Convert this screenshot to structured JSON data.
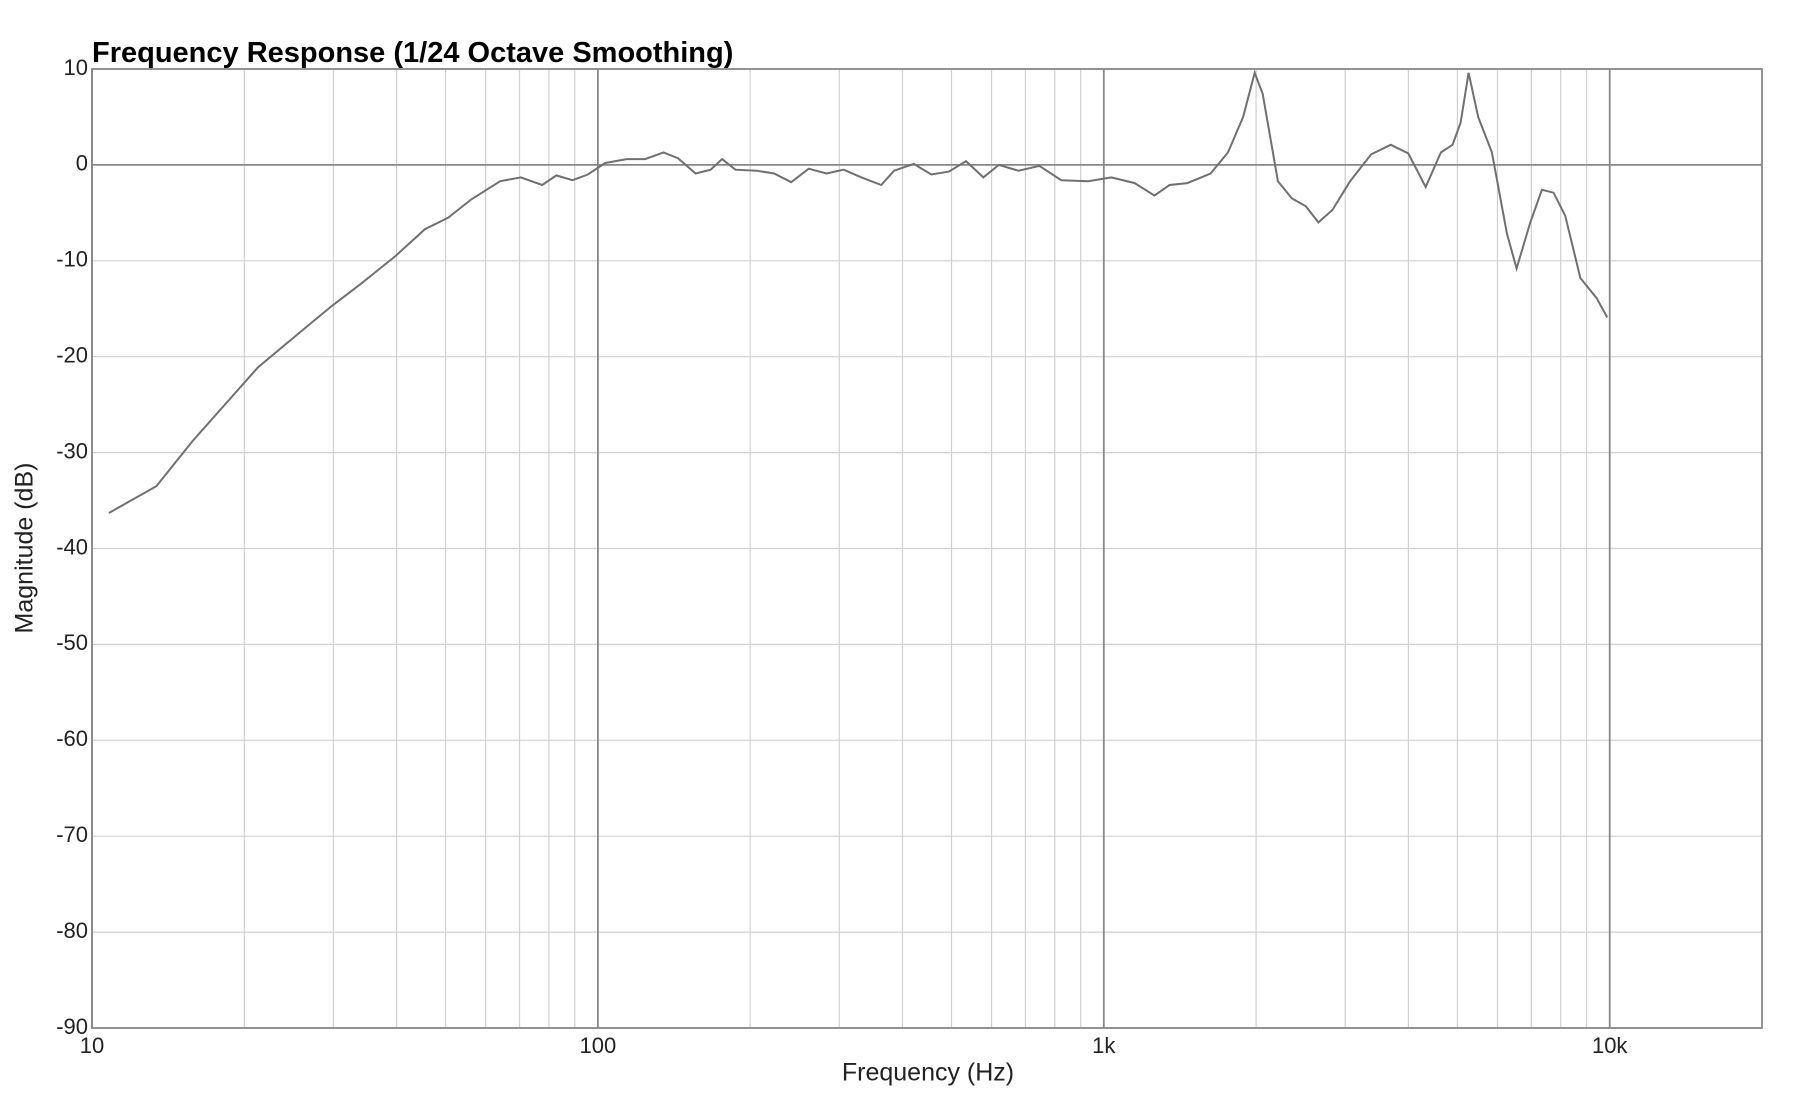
{
  "chart_data": {
    "type": "line",
    "title": "Frequency Response (1/24 Octave Smoothing)",
    "xlabel": "Frequency (Hz)",
    "ylabel": "Magnitude (dB)",
    "x_scale": "log",
    "xlim": [
      10,
      20000
    ],
    "xticks": [
      10,
      100,
      {
        "value": 1000,
        "label": "1k"
      },
      {
        "value": 10000,
        "label": "10k"
      }
    ],
    "ylim": [
      -90,
      10
    ],
    "yticks": [
      -90,
      -80,
      -70,
      -60,
      -50,
      -40,
      -30,
      -20,
      -10,
      0,
      10
    ],
    "grid": true,
    "minor_grid": true,
    "color": "#707070",
    "x": [
      10.8,
      13.4,
      15.8,
      21.3,
      26.4,
      29.8,
      34.0,
      39.8,
      45.5,
      50.6,
      56.2,
      64.1,
      70.4,
      77.6,
      82.8,
      89.1,
      95.5,
      103.4,
      114,
      124,
      134.8,
      144,
      156,
      167,
      176,
      187,
      206,
      223,
      241,
      261,
      283,
      306,
      332,
      363,
      385,
      421,
      456,
      494,
      534,
      578,
      620,
      678,
      746,
      824,
      931,
      1035,
      1151,
      1259,
      1349,
      1462,
      1626,
      1760,
      1885,
      1987,
      2061,
      2209,
      2355,
      2506,
      2656,
      2831,
      3068,
      3375,
      3691,
      3999,
      4328,
      4637,
      4889,
      5073,
      5262,
      5495,
      5851,
      6266,
      6547,
      6966,
      7345,
      7745,
      8166,
      8750,
      9424,
      9886
    ],
    "values": [
      -36.3,
      -33.5,
      -28.8,
      -21.1,
      -17.0,
      -14.7,
      -12.4,
      -9.5,
      -6.7,
      -5.5,
      -3.6,
      -1.7,
      -1.3,
      -2.1,
      -1.1,
      -1.6,
      -1.0,
      0.2,
      0.6,
      0.6,
      1.3,
      0.7,
      -0.9,
      -0.5,
      0.6,
      -0.5,
      -0.6,
      -0.9,
      -1.8,
      -0.4,
      -0.9,
      -0.5,
      -1.3,
      -2.1,
      -0.6,
      0.1,
      -1.0,
      -0.7,
      0.4,
      -1.3,
      0,
      -0.6,
      -0.1,
      -1.6,
      -1.7,
      -1.3,
      -1.9,
      -3.2,
      -2.1,
      -1.9,
      -0.9,
      1.3,
      5.0,
      9.6,
      7.4,
      -1.7,
      -3.5,
      -4.3,
      -6.0,
      -4.7,
      -1.7,
      1.1,
      2.1,
      1.2,
      -2.3,
      1.3,
      2.1,
      4.4,
      9.6,
      5.0,
      1.3,
      -7.2,
      -10.8,
      -6.0,
      -2.6,
      -2.9,
      -5.3,
      -11.8,
      -13.9,
      -15.9
    ]
  }
}
